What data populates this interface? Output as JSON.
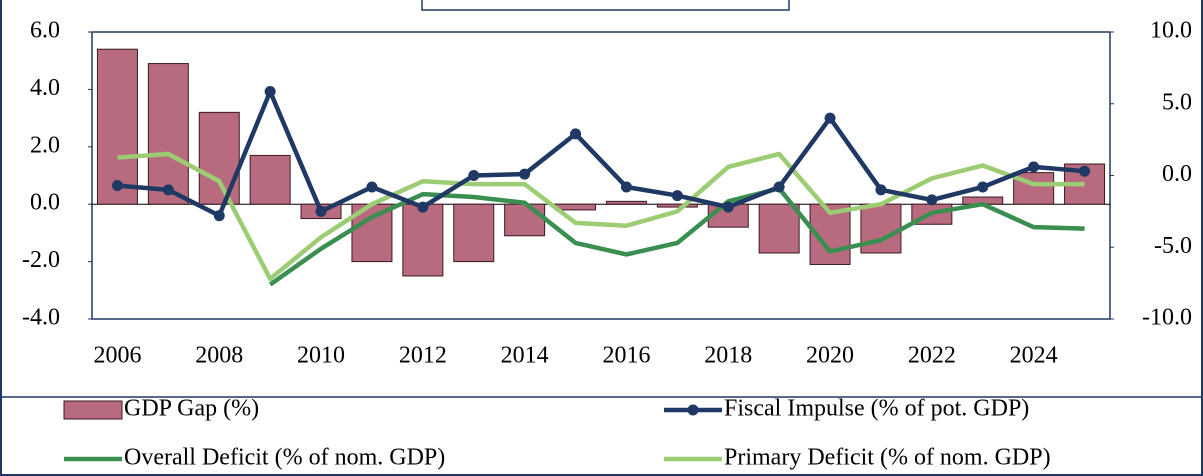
{
  "chart_data": {
    "type": "bar",
    "categories": [
      "2006",
      null,
      "2008",
      null,
      "2010",
      null,
      "2012",
      null,
      "2014",
      null,
      "2016",
      null,
      "2018",
      null,
      "2020",
      null,
      "2022",
      null,
      "2024",
      null
    ],
    "series": [
      {
        "name": "GDP Gap (%)",
        "type": "bar",
        "color": "#b86a7e",
        "values": [
          5.4,
          4.9,
          3.2,
          1.7,
          -0.5,
          -2.0,
          -2.5,
          -2.0,
          -1.1,
          -0.2,
          0.1,
          -0.1,
          -0.8,
          -1.7,
          -2.1,
          -1.7,
          -0.7,
          0.25,
          1.1,
          1.4
        ]
      },
      {
        "name": "Fiscal Impulse (% of pot. GDP)",
        "type": "line",
        "markers": true,
        "axis": "y2",
        "color": "#1f3864",
        "values": [
          -0.7,
          -1.0,
          -2.8,
          5.85,
          -2.5,
          -0.8,
          -2.2,
          0.0,
          0.1,
          2.9,
          -0.8,
          -1.4,
          -2.2,
          -0.8,
          4.0,
          -1.0,
          -1.7,
          -0.8,
          0.6,
          0.3
        ]
      },
      {
        "name": "Overall Deficit (% of nom. GDP)",
        "type": "line",
        "axis": "y2",
        "color": "#3a8f50",
        "values": [
          null,
          null,
          null,
          -7.6,
          -5.1,
          -2.9,
          -1.3,
          -1.5,
          -1.9,
          -4.7,
          -5.5,
          -4.7,
          -1.8,
          -0.9,
          -5.3,
          -4.5,
          -2.6,
          -2.0,
          -3.6,
          -3.7
        ]
      },
      {
        "name": "Primary Deficit (% of nom. GDP)",
        "type": "line",
        "axis": "y2",
        "color": "#9ccc74",
        "values": [
          1.25,
          1.5,
          -0.4,
          -7.2,
          -4.3,
          -2.0,
          -0.4,
          -0.6,
          -0.6,
          -3.3,
          -3.5,
          -2.5,
          0.6,
          1.5,
          -2.6,
          -2.0,
          -0.2,
          0.7,
          -0.6,
          -0.6
        ]
      }
    ],
    "ylim": [
      -4,
      6
    ],
    "yticks": [
      {
        "value": -4,
        "label": "-4.0"
      },
      {
        "value": -2,
        "label": "-2.0"
      },
      {
        "value": 0,
        "label": "0.0"
      },
      {
        "value": 2,
        "label": "2.0"
      },
      {
        "value": 4,
        "label": "4.0"
      },
      {
        "value": 6,
        "label": "6.0"
      }
    ],
    "y2lim": [
      -10,
      10
    ],
    "y2ticks": [
      {
        "value": -10,
        "label": "-10.0"
      },
      {
        "value": -5,
        "label": "-5.0"
      },
      {
        "value": 0,
        "label": "0.0"
      },
      {
        "value": 5,
        "label": "5.0"
      },
      {
        "value": 10,
        "label": "10.0"
      }
    ]
  }
}
